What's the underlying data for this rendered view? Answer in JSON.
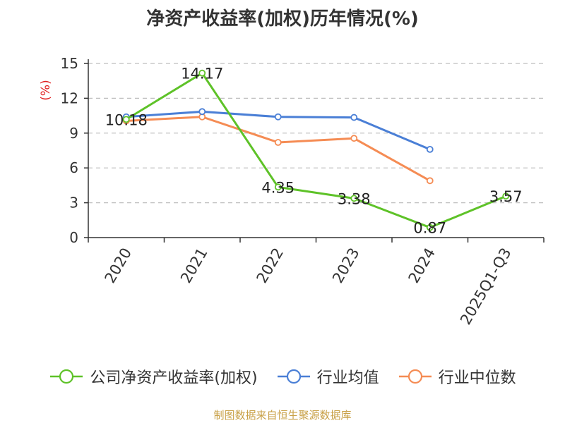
{
  "title": "净资产收益率(加权)历年情况(%)",
  "source": "制图数据来自恒生聚源数据库",
  "chart_data": {
    "type": "line",
    "ylabel": "(%)",
    "ylim": [
      0,
      15
    ],
    "yticks": [
      0,
      3,
      6,
      9,
      12,
      15
    ],
    "grid": true,
    "legend_position": "bottom",
    "categories": [
      "2020",
      "2021",
      "2022",
      "2023",
      "2024",
      "2025Q1-Q3"
    ],
    "series": [
      {
        "name": "公司净资产收益率(加权)",
        "color": "#5ec228",
        "values": [
          10.18,
          14.17,
          4.35,
          3.38,
          0.87,
          3.57
        ],
        "labels": [
          "10.18",
          "14.17",
          "4.35",
          "3.38",
          "0.87",
          "3.57"
        ]
      },
      {
        "name": "行业均值",
        "color": "#4a7fd6",
        "values": [
          10.4,
          10.85,
          10.4,
          10.35,
          7.6,
          null
        ]
      },
      {
        "name": "行业中位数",
        "color": "#f58c54",
        "values": [
          10.05,
          10.4,
          8.2,
          8.55,
          4.9,
          null
        ]
      }
    ]
  }
}
